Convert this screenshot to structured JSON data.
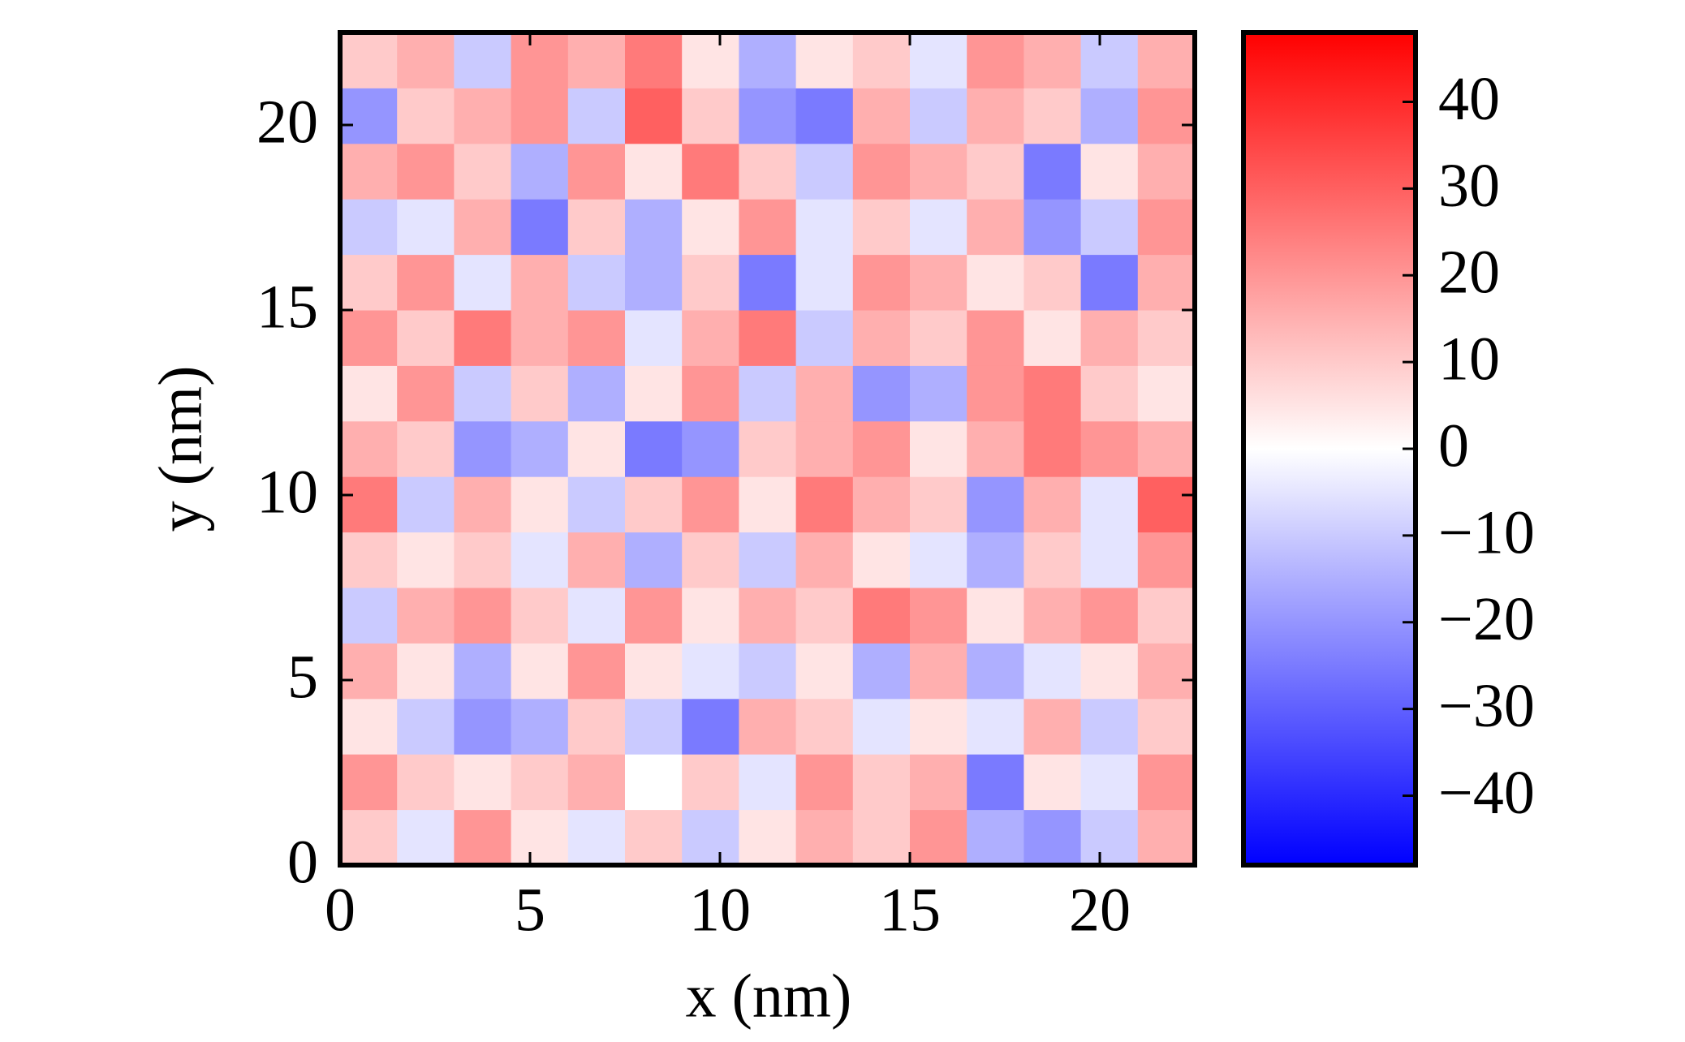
{
  "chart_data": {
    "type": "heatmap",
    "xlabel": "x (nm)",
    "ylabel": "y (nm)",
    "x": [
      0.75,
      2.25,
      3.75,
      5.25,
      6.75,
      8.25,
      9.75,
      11.25,
      12.75,
      14.25,
      15.75,
      17.25,
      18.75,
      20.25,
      21.75
    ],
    "y": [
      0.75,
      2.25,
      3.75,
      5.25,
      6.75,
      8.25,
      9.75,
      11.25,
      12.75,
      14.25,
      15.75,
      17.25,
      18.75,
      20.25,
      21.75
    ],
    "z": [
      [
        10,
        -5,
        20,
        5,
        -5,
        10,
        -10,
        5,
        15,
        10,
        20,
        -15,
        -20,
        -10,
        15
      ],
      [
        20,
        10,
        5,
        10,
        15,
        0,
        10,
        -5,
        20,
        10,
        15,
        -25,
        5,
        -5,
        20
      ],
      [
        5,
        -10,
        -20,
        -15,
        10,
        -10,
        -25,
        15,
        10,
        -5,
        5,
        -5,
        15,
        -10,
        10
      ],
      [
        15,
        5,
        -15,
        5,
        20,
        5,
        -5,
        -10,
        5,
        -15,
        15,
        -15,
        -5,
        5,
        15
      ],
      [
        -10,
        15,
        20,
        10,
        -5,
        20,
        5,
        15,
        10,
        25,
        20,
        5,
        15,
        20,
        10
      ],
      [
        10,
        5,
        10,
        -5,
        15,
        -15,
        10,
        -10,
        15,
        5,
        -5,
        -15,
        10,
        -5,
        20
      ],
      [
        25,
        -10,
        15,
        5,
        -10,
        10,
        20,
        5,
        25,
        15,
        10,
        -20,
        15,
        -5,
        30
      ],
      [
        15,
        10,
        -20,
        -15,
        5,
        -25,
        -20,
        10,
        15,
        20,
        5,
        15,
        25,
        20,
        15
      ],
      [
        5,
        20,
        -10,
        10,
        -15,
        5,
        20,
        -10,
        15,
        -20,
        -15,
        20,
        25,
        10,
        5
      ],
      [
        20,
        10,
        25,
        15,
        20,
        -5,
        15,
        25,
        -10,
        15,
        10,
        20,
        5,
        15,
        10
      ],
      [
        10,
        20,
        -5,
        15,
        -10,
        -15,
        10,
        -25,
        -5,
        20,
        15,
        5,
        10,
        -25,
        15
      ],
      [
        -10,
        -5,
        15,
        -25,
        10,
        -15,
        5,
        20,
        -5,
        10,
        -5,
        15,
        -20,
        -10,
        20
      ],
      [
        15,
        20,
        10,
        -15,
        20,
        5,
        25,
        10,
        -10,
        20,
        15,
        10,
        -25,
        5,
        15
      ],
      [
        -20,
        10,
        15,
        20,
        -10,
        30,
        10,
        -20,
        -25,
        15,
        -10,
        15,
        10,
        -15,
        20
      ],
      [
        10,
        15,
        -10,
        20,
        15,
        25,
        5,
        -15,
        5,
        10,
        -5,
        20,
        15,
        -10,
        15
      ]
    ],
    "xlim": [
      0,
      22.5
    ],
    "ylim": [
      0,
      22.5
    ],
    "xticks": [
      0,
      5,
      10,
      15,
      20
    ],
    "yticks": [
      0,
      5,
      10,
      15,
      20
    ],
    "colormap": "bwr",
    "clim": [
      -48,
      48
    ],
    "cticks": [
      {
        "value": -40,
        "label": "−40"
      },
      {
        "value": -30,
        "label": "−30"
      },
      {
        "value": -20,
        "label": "−20"
      },
      {
        "value": -10,
        "label": "−10"
      },
      0,
      10,
      20,
      30,
      40
    ]
  }
}
